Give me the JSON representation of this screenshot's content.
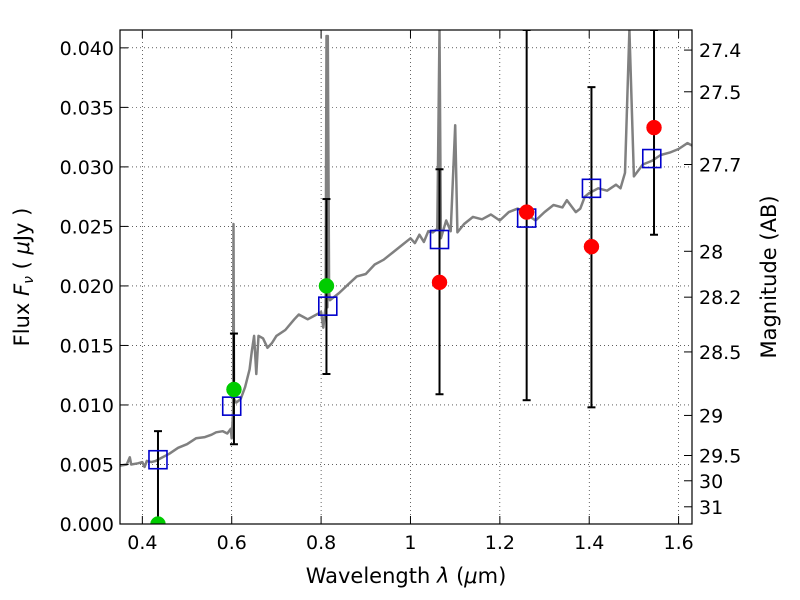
{
  "chart_data": {
    "type": "scatter",
    "xlabel": "Wavelength  λ (μm)",
    "ylabel": "Flux  F_ν  ( μJy )",
    "ylabel_parts": {
      "pre": "Flux  ",
      "var": "F",
      "sub": "ν",
      "mid": "  ( ",
      "unit_mu": "μ",
      "unit": "Jy )"
    },
    "xlabel_parts": {
      "pre": "Wavelength  ",
      "var": "λ",
      "mid": " (",
      "unit_mu": "μ",
      "unit": "m)"
    },
    "y2label": "Magnitude (AB)",
    "xlim": [
      0.35,
      1.63
    ],
    "ylim": [
      0.0,
      0.0415
    ],
    "grid": true,
    "xticks": [
      {
        "value": 0.4,
        "label": "0.4"
      },
      {
        "value": 0.6,
        "label": "0.6"
      },
      {
        "value": 0.8,
        "label": "0.8"
      },
      {
        "value": 1.0,
        "label": "1"
      },
      {
        "value": 1.2,
        "label": "1.2"
      },
      {
        "value": 1.4,
        "label": "1.4"
      },
      {
        "value": 1.6,
        "label": "1.6"
      }
    ],
    "yticks": [
      {
        "value": 0.0,
        "label": "0.000"
      },
      {
        "value": 0.005,
        "label": "0.005"
      },
      {
        "value": 0.01,
        "label": "0.010"
      },
      {
        "value": 0.015,
        "label": "0.015"
      },
      {
        "value": 0.02,
        "label": "0.020"
      },
      {
        "value": 0.025,
        "label": "0.025"
      },
      {
        "value": 0.03,
        "label": "0.030"
      },
      {
        "value": 0.035,
        "label": "0.035"
      },
      {
        "value": 0.04,
        "label": "0.040"
      }
    ],
    "magnitude_ticks": [
      {
        "value": 27.4,
        "label": "27.4"
      },
      {
        "value": 27.5,
        "label": "27.5"
      },
      {
        "value": 27.7,
        "label": "27.7"
      },
      {
        "value": 28.0,
        "label": "28"
      },
      {
        "value": 28.2,
        "label": "28.2"
      },
      {
        "value": 28.5,
        "label": "28.5"
      },
      {
        "value": 29.0,
        "label": "29"
      },
      {
        "value": 29.5,
        "label": "29.5"
      },
      {
        "value": 30.0,
        "label": "30"
      },
      {
        "value": 31.0,
        "label": "31"
      }
    ],
    "colors": {
      "spectrum": "#808080",
      "observed_detection": "#00cc00",
      "observed_faint": "#ff0000",
      "model": "#0000cc",
      "errorbar": "#000000"
    },
    "spectrum": [
      [
        0.35,
        0.0049
      ],
      [
        0.365,
        0.005
      ],
      [
        0.372,
        0.0056
      ],
      [
        0.375,
        0.005
      ],
      [
        0.39,
        0.0051
      ],
      [
        0.4,
        0.0052
      ],
      [
        0.405,
        0.0048
      ],
      [
        0.41,
        0.0053
      ],
      [
        0.42,
        0.0052
      ],
      [
        0.43,
        0.0053
      ],
      [
        0.44,
        0.0055
      ],
      [
        0.46,
        0.0059
      ],
      [
        0.48,
        0.0064
      ],
      [
        0.5,
        0.0067
      ],
      [
        0.52,
        0.0072
      ],
      [
        0.54,
        0.0073
      ],
      [
        0.555,
        0.0075
      ],
      [
        0.565,
        0.0077
      ],
      [
        0.58,
        0.0078
      ],
      [
        0.59,
        0.0076
      ],
      [
        0.598,
        0.008
      ],
      [
        0.6,
        0.0072
      ],
      [
        0.603,
        0.0095
      ],
      [
        0.604,
        0.0252
      ],
      [
        0.605,
        0.0105
      ],
      [
        0.61,
        0.0102
      ],
      [
        0.62,
        0.0105
      ],
      [
        0.63,
        0.0115
      ],
      [
        0.64,
        0.013
      ],
      [
        0.645,
        0.0145
      ],
      [
        0.65,
        0.0158
      ],
      [
        0.655,
        0.0126
      ],
      [
        0.66,
        0.0158
      ],
      [
        0.67,
        0.0156
      ],
      [
        0.68,
        0.0148
      ],
      [
        0.69,
        0.0152
      ],
      [
        0.7,
        0.0158
      ],
      [
        0.72,
        0.0163
      ],
      [
        0.74,
        0.0172
      ],
      [
        0.75,
        0.0176
      ],
      [
        0.76,
        0.0174
      ],
      [
        0.77,
        0.0172
      ],
      [
        0.78,
        0.0174
      ],
      [
        0.79,
        0.0176
      ],
      [
        0.8,
        0.0178
      ],
      [
        0.805,
        0.0165
      ],
      [
        0.81,
        0.0182
      ],
      [
        0.812,
        0.041
      ],
      [
        0.814,
        0.0182
      ],
      [
        0.815,
        0.041
      ],
      [
        0.818,
        0.0195
      ],
      [
        0.82,
        0.0188
      ],
      [
        0.84,
        0.0194
      ],
      [
        0.86,
        0.0201
      ],
      [
        0.88,
        0.0208
      ],
      [
        0.9,
        0.021
      ],
      [
        0.92,
        0.0218
      ],
      [
        0.94,
        0.0222
      ],
      [
        0.96,
        0.0228
      ],
      [
        0.98,
        0.0234
      ],
      [
        1.0,
        0.024
      ],
      [
        1.01,
        0.0236
      ],
      [
        1.02,
        0.0243
      ],
      [
        1.03,
        0.0237
      ],
      [
        1.04,
        0.0246
      ],
      [
        1.05,
        0.0245
      ],
      [
        1.06,
        0.0248
      ],
      [
        1.065,
        0.0415
      ],
      [
        1.068,
        0.024
      ],
      [
        1.08,
        0.0255
      ],
      [
        1.09,
        0.0246
      ],
      [
        1.1,
        0.0335
      ],
      [
        1.105,
        0.0245
      ],
      [
        1.12,
        0.0252
      ],
      [
        1.14,
        0.0258
      ],
      [
        1.16,
        0.0256
      ],
      [
        1.18,
        0.026
      ],
      [
        1.2,
        0.0255
      ],
      [
        1.22,
        0.0262
      ],
      [
        1.24,
        0.0265
      ],
      [
        1.26,
        0.026
      ],
      [
        1.28,
        0.0255
      ],
      [
        1.3,
        0.0262
      ],
      [
        1.32,
        0.0268
      ],
      [
        1.34,
        0.0266
      ],
      [
        1.35,
        0.0272
      ],
      [
        1.37,
        0.0262
      ],
      [
        1.38,
        0.0265
      ],
      [
        1.39,
        0.0275
      ],
      [
        1.4,
        0.0278
      ],
      [
        1.42,
        0.0282
      ],
      [
        1.44,
        0.028
      ],
      [
        1.46,
        0.0285
      ],
      [
        1.47,
        0.0282
      ],
      [
        1.48,
        0.0295
      ],
      [
        1.49,
        0.0415
      ],
      [
        1.5,
        0.0292
      ],
      [
        1.52,
        0.0302
      ],
      [
        1.54,
        0.0305
      ],
      [
        1.56,
        0.031
      ],
      [
        1.58,
        0.0312
      ],
      [
        1.6,
        0.0315
      ],
      [
        1.62,
        0.032
      ],
      [
        1.63,
        0.0318
      ]
    ],
    "model_points": [
      {
        "x": 0.435,
        "y": 0.0054
      },
      {
        "x": 0.6,
        "y": 0.0099
      },
      {
        "x": 0.815,
        "y": 0.0183
      },
      {
        "x": 1.065,
        "y": 0.0239
      },
      {
        "x": 1.26,
        "y": 0.0257
      },
      {
        "x": 1.405,
        "y": 0.0282
      },
      {
        "x": 1.54,
        "y": 0.0307
      }
    ],
    "observed_points": [
      {
        "x": 0.435,
        "y": 0.0,
        "color": "detection",
        "yerr_low": 0.0,
        "yerr_high": 0.0078
      },
      {
        "x": 0.605,
        "y": 0.0113,
        "color": "detection",
        "yerr_low": 0.0067,
        "yerr_high": 0.016
      },
      {
        "x": 0.812,
        "y": 0.02,
        "color": "detection",
        "yerr_low": 0.0126,
        "yerr_high": 0.0273
      },
      {
        "x": 1.065,
        "y": 0.0203,
        "color": "faint",
        "yerr_low": 0.0109,
        "yerr_high": 0.0298
      },
      {
        "x": 1.26,
        "y": 0.0262,
        "color": "faint",
        "yerr_low": 0.0104,
        "yerr_high": 0.0415
      },
      {
        "x": 1.405,
        "y": 0.0233,
        "color": "faint",
        "yerr_low": 0.0098,
        "yerr_high": 0.0367
      },
      {
        "x": 1.545,
        "y": 0.0333,
        "color": "faint",
        "yerr_low": 0.0243,
        "yerr_high": 0.0415
      }
    ]
  }
}
